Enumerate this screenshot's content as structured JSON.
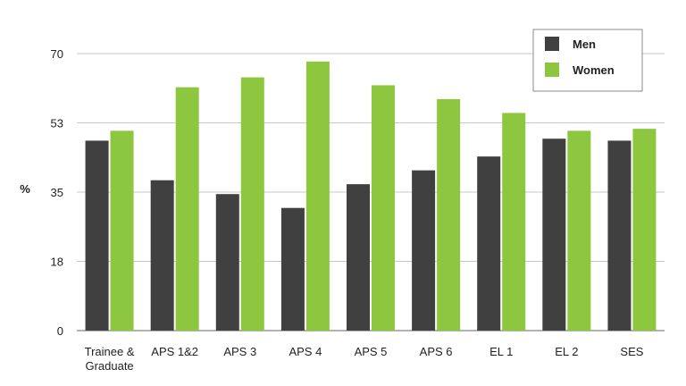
{
  "chart_data": {
    "type": "bar",
    "title": "",
    "xlabel": "",
    "ylabel": "%",
    "ylim": [
      0,
      70
    ],
    "yticks": [
      "0",
      "18",
      "35",
      "53",
      "70"
    ],
    "ytick_values": [
      0,
      17.5,
      35,
      52.5,
      70
    ],
    "grid": true,
    "legend_position": "top-right",
    "categories": [
      [
        "Trainee &",
        "Graduate"
      ],
      [
        "APS 1&2"
      ],
      [
        "APS 3"
      ],
      [
        "APS 4"
      ],
      [
        "APS 5"
      ],
      [
        "APS 6"
      ],
      [
        "EL 1"
      ],
      [
        "EL 2"
      ],
      [
        "SES"
      ]
    ],
    "series": [
      {
        "name": "Men",
        "color": "#404040",
        "values": [
          48,
          38,
          34.5,
          31,
          37,
          40.5,
          44,
          48.5,
          48
        ]
      },
      {
        "name": "Women",
        "color": "#8dc63f",
        "values": [
          50.5,
          61.5,
          64,
          68,
          62,
          58.5,
          55,
          50.5,
          51
        ]
      }
    ]
  }
}
